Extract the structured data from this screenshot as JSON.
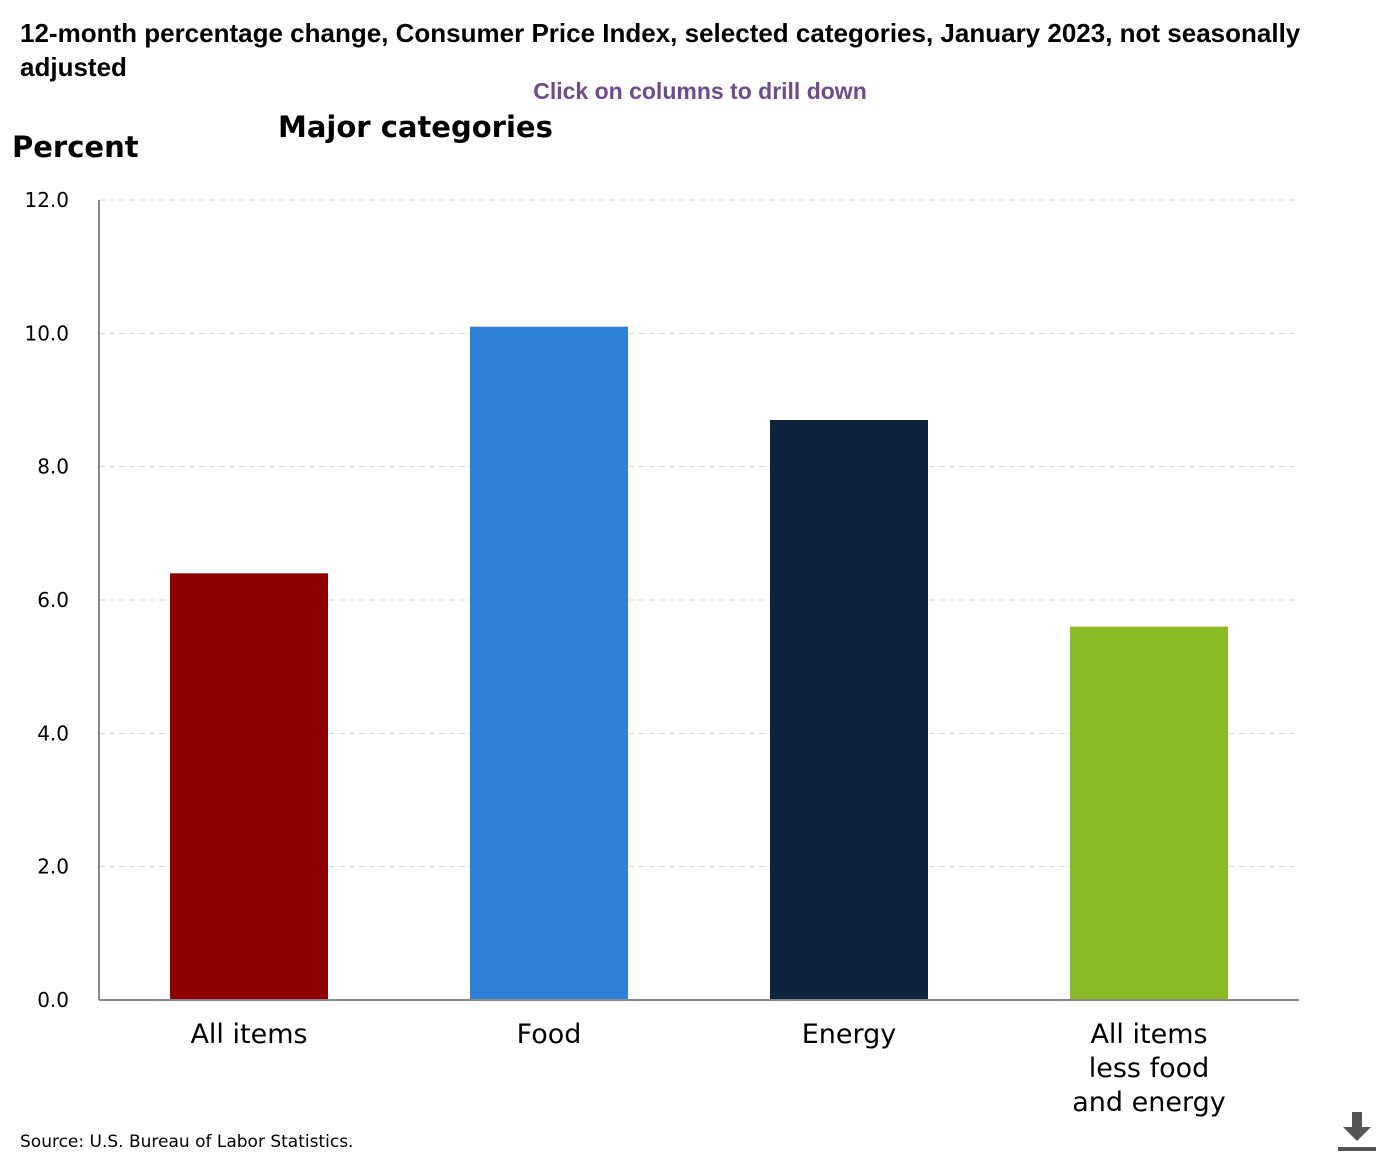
{
  "header": {
    "title": "12-month percentage change, Consumer Price Index, selected categories, January 2023, not seasonally adjusted",
    "drill_hint": "Click on columns to drill down"
  },
  "chart_data": {
    "type": "bar",
    "title": "Major categories",
    "ylabel": "Percent",
    "xlabel": "",
    "ylim": [
      0,
      12
    ],
    "yticks": [
      "0.0",
      "2.0",
      "4.0",
      "6.0",
      "8.0",
      "10.0",
      "12.0"
    ],
    "grid": true,
    "categories": [
      [
        "All items"
      ],
      [
        "Food"
      ],
      [
        "Energy"
      ],
      [
        "All items",
        "less food",
        "and energy"
      ]
    ],
    "values": [
      6.4,
      10.1,
      8.7,
      5.6
    ],
    "colors": [
      "#8f0000",
      "#2f80d9",
      "#0f243c",
      "#8bbb24"
    ]
  },
  "footer": {
    "source": "Source: U.S. Bureau of Labor Statistics."
  },
  "icons": {
    "download": "download-icon"
  }
}
